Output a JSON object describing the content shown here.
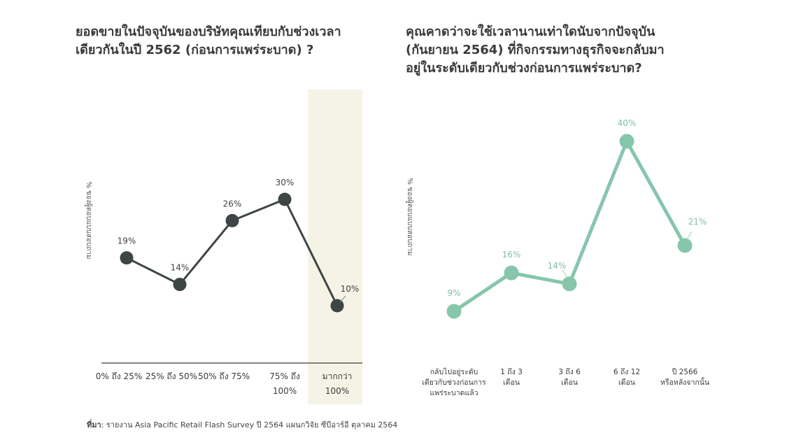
{
  "chart_data": [
    {
      "type": "line",
      "title_lines": [
        "ยอดขายในปัจจุบันของบริษัทคุณเทียบกับช่วงเวลา",
        "เดียวกันในปี 2562 (ก่อนการแพร่ระบาด) ?"
      ],
      "ylabel": "% ของผู้ตอบแบบสอบถาม",
      "categories": [
        [
          "0% ถึง 25%"
        ],
        [
          "25% ถึง 50%"
        ],
        [
          "50% ถึง 75%"
        ],
        [
          "75% ถึง",
          "100%"
        ],
        [
          "มากกว่า",
          "100%"
        ]
      ],
      "values": [
        19,
        14,
        26,
        30,
        10
      ],
      "value_labels": [
        "19%",
        "14%",
        "26%",
        "30%",
        "10%"
      ],
      "highlight_category_index": 4,
      "ylim": [
        0,
        45
      ],
      "line_color": "#3d4545",
      "highlight_color": "#f4f3e6",
      "grid": false
    },
    {
      "type": "line",
      "title_lines": [
        "คุณคาดว่าจะใช้เวลานานเท่าใดนับจากปัจจุบัน",
        "(กันยายน 2564) ที่กิจกรรมทางธุรกิจจะกลับมา",
        "อยู่ในระดับเดียวกับช่วงก่อนการแพร่ระบาด?"
      ],
      "ylabel": "% ของผู้ตอบแบบสอบถาม",
      "categories": [
        [
          "กลับไปอยู่ระดับ",
          "เดียวกับช่วงก่อนการ",
          "แพร่ระบาดแล้ว"
        ],
        [
          "1 ถึง 3",
          "เดือน"
        ],
        [
          "3 ถึง 6",
          "เดือน"
        ],
        [
          "6 ถึง 12",
          "เดือน"
        ],
        [
          "ปี 2566",
          "หรือหลังจากนั้น"
        ]
      ],
      "values": [
        9,
        16,
        14,
        40,
        21
      ],
      "value_labels": [
        "9%",
        "16%",
        "14%",
        "40%",
        "21%"
      ],
      "ylim": [
        0,
        45
      ],
      "line_color": "#86c6ab",
      "label_color": "#7fc1a5",
      "grid": false
    }
  ],
  "source": {
    "label": "ที่มา",
    "text": ": รายงาน Asia Pacific Retail Flash Survey ปี 2564  แผนกวิจัย ซีบีอาร์อี  ตุลาคม 2564"
  }
}
